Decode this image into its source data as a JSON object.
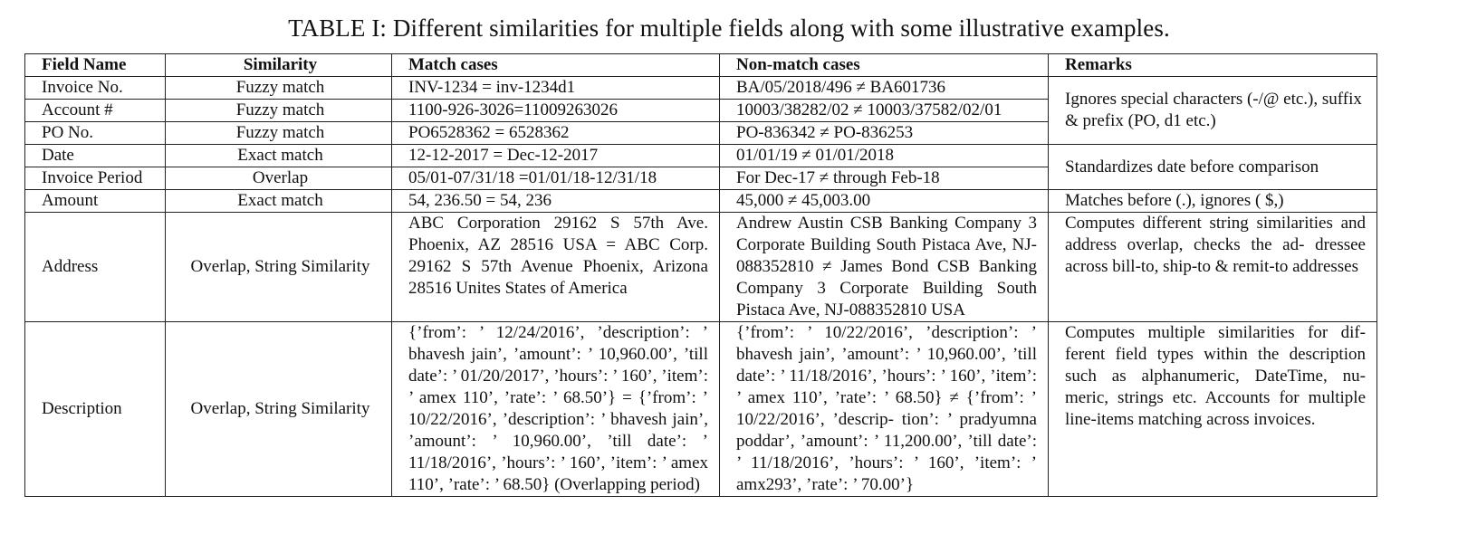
{
  "caption": "TABLE I:  Different similarities for multiple fields along with some illustrative examples.",
  "headers": [
    "Field Name",
    "Similarity",
    "Match cases",
    "Non-match cases",
    "Remarks"
  ],
  "rows": [
    {
      "field": "Invoice No.",
      "similarity": "Fuzzy match",
      "match": "INV-1234 = inv-1234d1",
      "nonmatch": "BA/05/2018/496 ≠ BA601736"
    },
    {
      "field": "Account #",
      "similarity": "Fuzzy match",
      "match": "1100-926-3026=11009263026",
      "nonmatch": "10003/38282/02 ≠ 10003/37582/02/01"
    },
    {
      "field": "PO No.",
      "similarity": "Fuzzy match",
      "match": "PO6528362 = 6528362",
      "nonmatch": "PO-836342 ≠ PO-836253"
    },
    {
      "field": "Date",
      "similarity": "Exact match",
      "match": "12-12-2017 = Dec-12-2017",
      "nonmatch": "01/01/19 ≠ 01/01/2018"
    },
    {
      "field": "Invoice Period",
      "similarity": "Overlap",
      "match": "05/01-07/31/18 =01/01/18-12/31/18",
      "nonmatch": "For Dec-17 ≠ through Feb-18"
    },
    {
      "field": "Amount",
      "similarity": "Exact match",
      "match": "54, 236.50 = 54, 236",
      "nonmatch": "45,000 ≠ 45,003.00",
      "remark": "Matches before (.), ignores ( $,)"
    },
    {
      "field": "Address",
      "similarity": "Overlap, String Similarity",
      "match": "ABC Corporation 29162 S 57th Ave. Phoenix, AZ 28516 USA = ABC Corp. 29162 S 57th Avenue Phoenix, Arizona 28516 Unites States of America",
      "nonmatch": "Andrew Austin CSB Banking Company 3 Corporate Building South Pistaca Ave, NJ-088352810 ≠ James Bond CSB Banking Company 3 Corporate Building South Pistaca Ave, NJ-088352810 USA",
      "remark": "Computes different string similarities and address overlap, checks the ad- dressee across bill-to, ship-to & remit-to addresses"
    },
    {
      "field": "Description",
      "similarity": "Overlap, String Similarity",
      "match": "{’from’: ’ 12/24/2016’, ’description’: ’ bhavesh jain’, ’amount’: ’ 10,960.00’, ’till date’: ’ 01/20/2017’, ’hours’: ’ 160’, ’item’: ’ amex 110’, ’rate’: ’ 68.50’} = {’from’: ’ 10/22/2016’, ’description’: ’ bhavesh jain’, ’amount’: ’ 10,960.00’, ’till date’: ’ 11/18/2016’, ’hours’: ’ 160’, ’item’: ’ amex 110’, ’rate’: ’ 68.50} (Overlapping period)",
      "nonmatch": "{’from’: ’ 10/22/2016’, ’description’: ’ bhavesh jain’, ’amount’: ’ 10,960.00’, ’till date’: ’ 11/18/2016’, ’hours’: ’ 160’, ’item’: ’ amex 110’, ’rate’: ’ 68.50} ≠ {’from’: ’ 10/22/2016’, ’descrip- tion’: ’ pradyumna poddar’, ’amount’: ’ 11,200.00’, ’till date’: ’ 11/18/2016’, ’hours’: ’ 160’, ’item’: ’ amx293’, ’rate’: ’ 70.00’}",
      "remark": "Computes multiple similarities for dif- ferent field types within the description such as alphanumeric, DateTime, nu- meric, strings etc. Accounts for multiple line-items matching across invoices."
    }
  ],
  "merged_remarks": {
    "ids": "Ignores special characters (-/@ etc.), suffix & prefix (PO, d1 etc.)",
    "dates": "Standardizes date before comparison"
  }
}
